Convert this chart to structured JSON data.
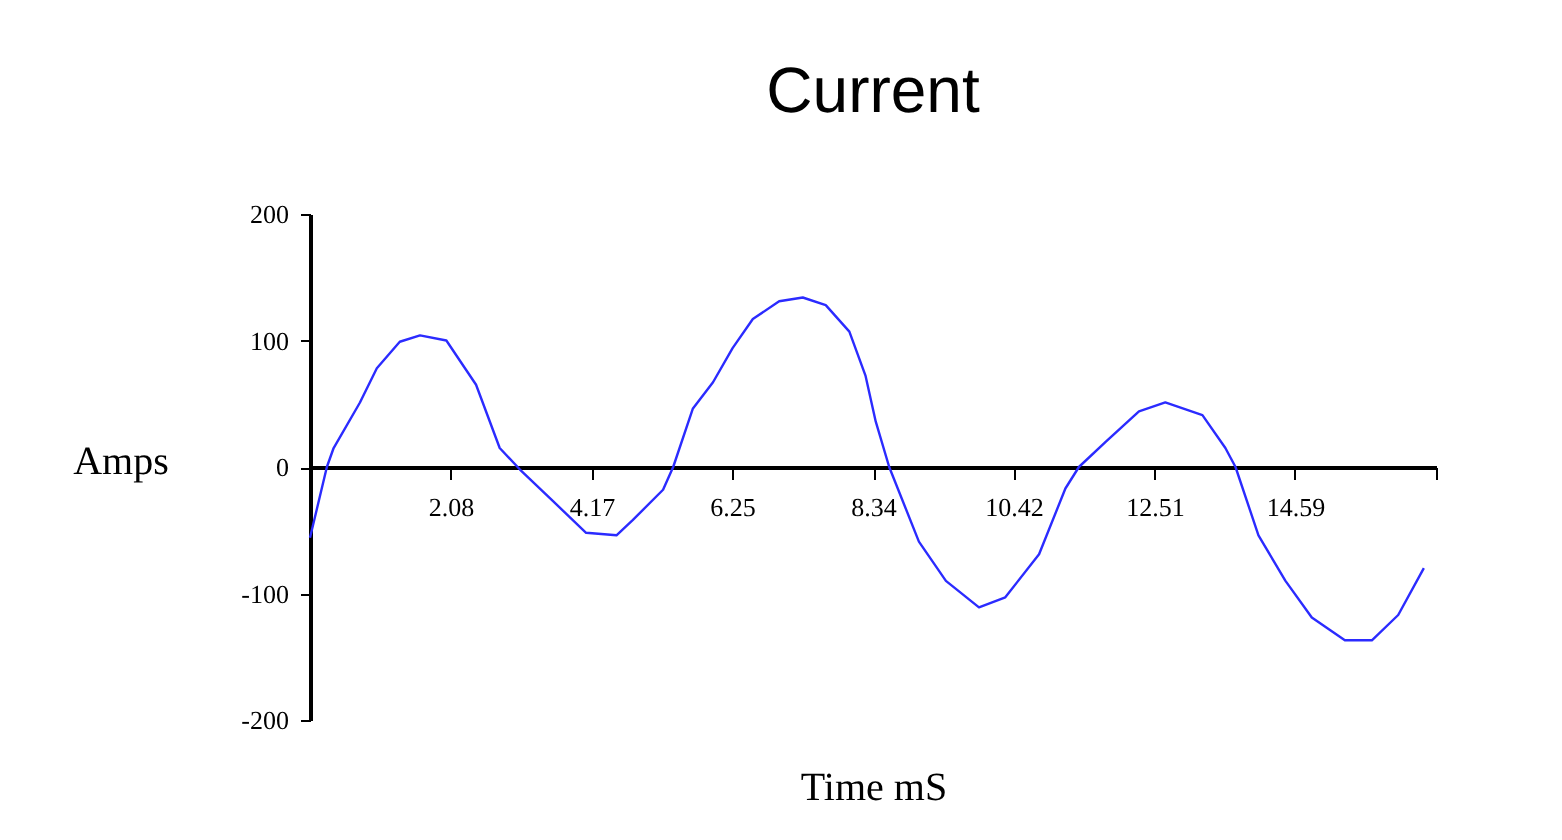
{
  "chart_data": {
    "type": "line",
    "title": "Current",
    "xlabel": "Time mS",
    "ylabel": "Amps",
    "series": [
      {
        "color": "#2b2bff",
        "x": [
          0,
          0.25,
          0.35,
          0.74,
          0.99,
          1.33,
          1.63,
          2.02,
          2.46,
          2.81,
          3.11,
          3.6,
          4.09,
          4.54,
          4.78,
          5.23,
          5.38,
          5.67,
          5.97,
          6.26,
          6.56,
          6.95,
          7.3,
          7.64,
          7.99,
          8.23,
          8.38,
          8.58,
          9.02,
          9.42,
          9.91,
          10.3,
          10.8,
          11.19,
          11.39,
          11.79,
          12.28,
          12.67,
          13.22,
          13.56,
          13.71,
          14.05,
          14.45,
          14.84,
          15.33,
          15.73,
          16.12,
          16.5
        ],
        "values": [
          -56,
          0,
          15,
          51,
          78,
          99,
          104,
          100,
          65,
          15,
          -2,
          -27,
          -52,
          -54,
          -42,
          -18,
          0,
          46,
          67,
          94,
          117,
          131,
          134,
          128,
          107,
          72,
          36,
          0,
          -59,
          -90,
          -111,
          -103,
          -69,
          -17,
          0,
          20,
          44,
          51,
          41,
          15,
          0,
          -54,
          -90,
          -119,
          -137,
          -137,
          -117,
          -80
        ]
      }
    ],
    "xlim": [
      0,
      16.68
    ],
    "xticks": [
      2.08,
      4.17,
      6.25,
      8.34,
      10.42,
      12.51,
      14.59,
      {
        "value": 16.68,
        "label": null
      }
    ],
    "ylim": [
      -200,
      200
    ],
    "yticks": [
      -200,
      -100,
      0,
      100,
      200
    ],
    "grid": false,
    "legend": false,
    "marker": "none",
    "line_style": "solid"
  }
}
